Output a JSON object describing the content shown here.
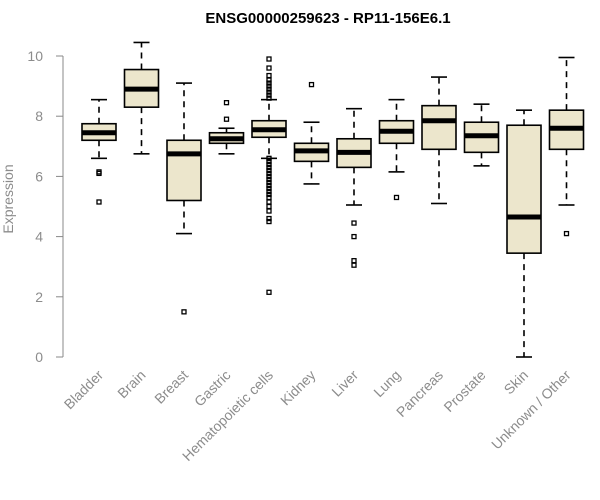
{
  "chart_data": {
    "type": "boxplot",
    "title": "ENSG00000259623 - RP11-156E6.1",
    "xlabel": "",
    "ylabel": "Expression",
    "ylim": [
      0,
      10
    ],
    "yticks": [
      0,
      2,
      4,
      6,
      8,
      10
    ],
    "categories": [
      "Bladder",
      "Brain",
      "Breast",
      "Gastric",
      "Hematopoietic cells",
      "Kidney",
      "Liver",
      "Lung",
      "Pancreas",
      "Prostate",
      "Skin",
      "Unknown / Other"
    ],
    "boxes": [
      {
        "name": "Bladder",
        "min": 6.6,
        "q1": 7.2,
        "median": 7.45,
        "q3": 7.75,
        "max": 8.55,
        "outliers": [
          6.15,
          6.1,
          5.15
        ]
      },
      {
        "name": "Brain",
        "min": 6.75,
        "q1": 8.3,
        "median": 8.9,
        "q3": 9.55,
        "max": 10.45,
        "outliers": []
      },
      {
        "name": "Breast",
        "min": 4.1,
        "q1": 5.2,
        "median": 6.75,
        "q3": 7.2,
        "max": 9.1,
        "outliers": [
          1.5
        ]
      },
      {
        "name": "Gastric",
        "min": 6.75,
        "q1": 7.1,
        "median": 7.25,
        "q3": 7.45,
        "max": 7.6,
        "outliers": [
          8.45,
          7.9
        ]
      },
      {
        "name": "Hematopoietic cells",
        "min": 6.6,
        "q1": 7.3,
        "median": 7.55,
        "q3": 7.85,
        "max": 8.55,
        "outliers": [
          9.9,
          9.6,
          9.35,
          9.2,
          9.1,
          9.0,
          8.9,
          8.8,
          8.7,
          8.6,
          6.6,
          6.5,
          6.4,
          6.3,
          6.2,
          6.1,
          6.0,
          5.9,
          5.8,
          5.7,
          5.6,
          5.5,
          5.4,
          5.3,
          5.15,
          5.0,
          4.85,
          4.6,
          4.5,
          2.15
        ]
      },
      {
        "name": "Kidney",
        "min": 5.75,
        "q1": 6.5,
        "median": 6.85,
        "q3": 7.1,
        "max": 7.8,
        "outliers": [
          9.05
        ]
      },
      {
        "name": "Liver",
        "min": 5.05,
        "q1": 6.3,
        "median": 6.8,
        "q3": 7.25,
        "max": 8.25,
        "outliers": [
          4.45,
          4.0,
          3.2,
          3.05
        ]
      },
      {
        "name": "Lung",
        "min": 6.15,
        "q1": 7.1,
        "median": 7.5,
        "q3": 7.85,
        "max": 8.55,
        "outliers": [
          5.3
        ]
      },
      {
        "name": "Pancreas",
        "min": 5.1,
        "q1": 6.9,
        "median": 7.85,
        "q3": 8.35,
        "max": 9.3,
        "outliers": []
      },
      {
        "name": "Prostate",
        "min": 6.35,
        "q1": 6.8,
        "median": 7.35,
        "q3": 7.8,
        "max": 8.4,
        "outliers": []
      },
      {
        "name": "Skin",
        "min": 0.0,
        "q1": 3.45,
        "median": 4.65,
        "q3": 7.7,
        "max": 8.2,
        "outliers": []
      },
      {
        "name": "Unknown / Other",
        "min": 5.05,
        "q1": 6.9,
        "median": 7.6,
        "q3": 8.2,
        "max": 9.95,
        "outliers": [
          4.1
        ]
      }
    ]
  }
}
